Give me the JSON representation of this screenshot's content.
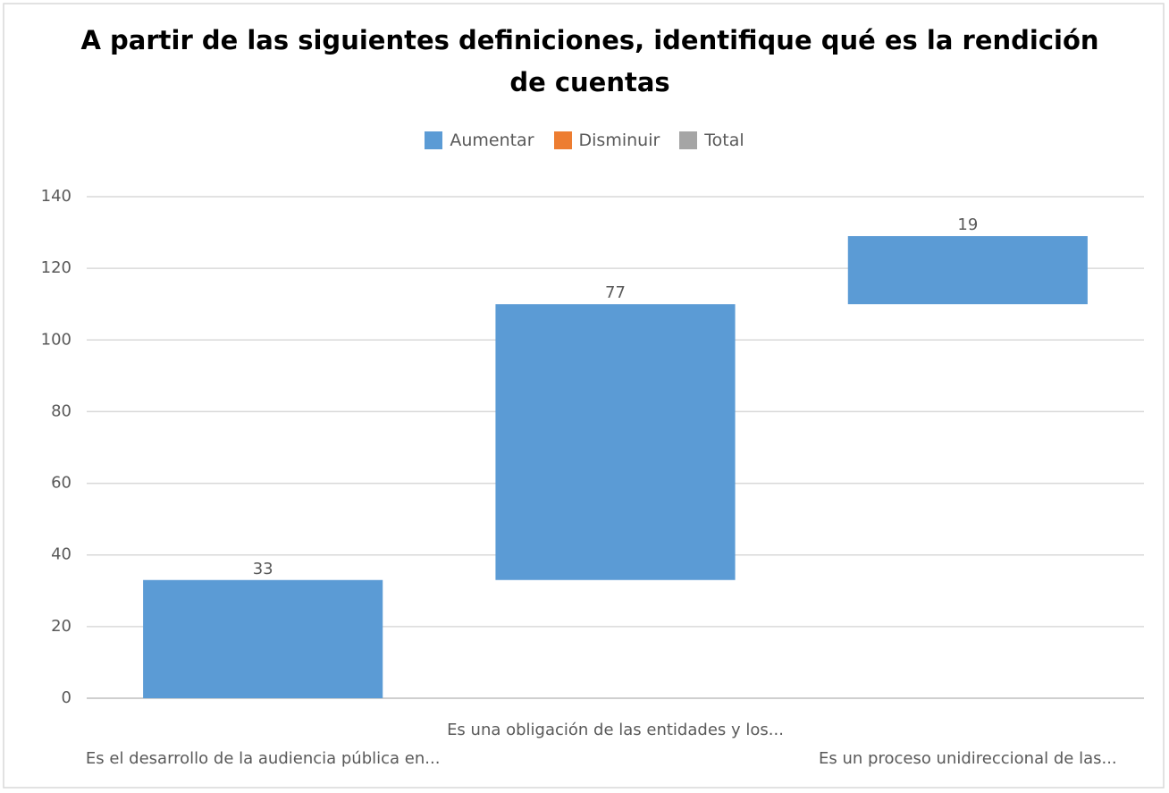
{
  "chart_data": {
    "type": "waterfall",
    "title": "A partir de las siguientes definiciones, identifique qué es la rendición de cuentas",
    "categories": [
      "Es el desarrollo de la audiencia pública en...",
      "Es una obligación de las entidades y  los...",
      "Es un proceso unidireccional de las..."
    ],
    "series": [
      {
        "name": "Aumentar",
        "color": "#5b9bd5",
        "values": [
          33,
          77,
          19
        ]
      },
      {
        "name": "Disminuir",
        "color": "#ed7d31",
        "values": [
          null,
          null,
          null
        ]
      },
      {
        "name": "Total",
        "color": "#a5a5a5",
        "values": [
          null,
          null,
          null
        ]
      }
    ],
    "ylim": [
      0,
      140
    ],
    "yticks": [
      0,
      20,
      40,
      60,
      80,
      100,
      120,
      140
    ],
    "grid": true,
    "legend": "top"
  }
}
